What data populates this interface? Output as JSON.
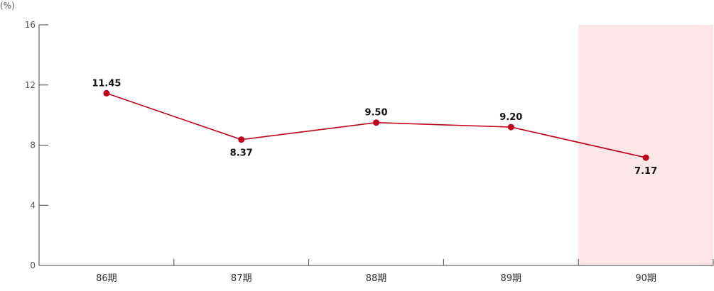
{
  "chart_data": {
    "type": "line",
    "unit_label": "(%)",
    "categories": [
      "86期",
      "87期",
      "88期",
      "89期",
      "90期"
    ],
    "values": [
      11.45,
      8.37,
      9.5,
      9.2,
      7.17
    ],
    "data_labels": [
      "11.45",
      "8.37",
      "9.50",
      "9.20",
      "7.17"
    ],
    "label_position": [
      "above",
      "below",
      "above",
      "above",
      "below"
    ],
    "yticks": [
      0,
      4,
      8,
      12,
      16
    ],
    "ylim": [
      0,
      16
    ],
    "grid": false,
    "highlighted_category": "90期",
    "colors": {
      "line": "#c0001a",
      "highlight": "#fde6e8",
      "axis": "#444444"
    }
  }
}
